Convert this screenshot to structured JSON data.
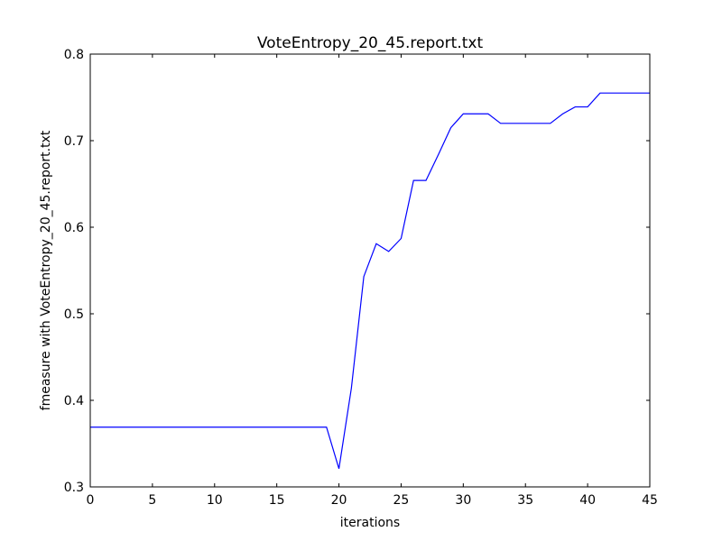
{
  "chart_data": {
    "type": "line",
    "title": "VoteEntropy_20_45.report.txt",
    "xlabel": "iterations",
    "ylabel": "fmeasure with VoteEntropy_20_45.report.txt",
    "xlim": [
      0,
      45
    ],
    "ylim": [
      0.3,
      0.8
    ],
    "x_ticks": [
      "0",
      "5",
      "10",
      "15",
      "20",
      "25",
      "30",
      "35",
      "40",
      "45"
    ],
    "y_ticks": [
      "0.3",
      "0.4",
      "0.5",
      "0.6",
      "0.7",
      "0.8"
    ],
    "grid": false,
    "line_color": "#0000ff",
    "series": [
      {
        "x": [
          0,
          1,
          2,
          3,
          4,
          5,
          6,
          7,
          8,
          9,
          10,
          11,
          12,
          13,
          14,
          15,
          16,
          17,
          18,
          19,
          20,
          21,
          22,
          23,
          24,
          25,
          26,
          27,
          28,
          29,
          30,
          31,
          32,
          33,
          34,
          35,
          36,
          37,
          38,
          39,
          40,
          41,
          42,
          43,
          44,
          45
        ],
        "values": [
          0.369,
          0.369,
          0.369,
          0.369,
          0.369,
          0.369,
          0.369,
          0.369,
          0.369,
          0.369,
          0.369,
          0.369,
          0.369,
          0.369,
          0.369,
          0.369,
          0.369,
          0.369,
          0.369,
          0.369,
          0.321,
          0.414,
          0.543,
          0.581,
          0.572,
          0.587,
          0.654,
          0.654,
          0.684,
          0.715,
          0.731,
          0.731,
          0.731,
          0.72,
          0.72,
          0.72,
          0.72,
          0.72,
          0.731,
          0.739,
          0.739,
          0.755,
          0.755,
          0.755,
          0.755,
          0.755
        ]
      }
    ]
  }
}
